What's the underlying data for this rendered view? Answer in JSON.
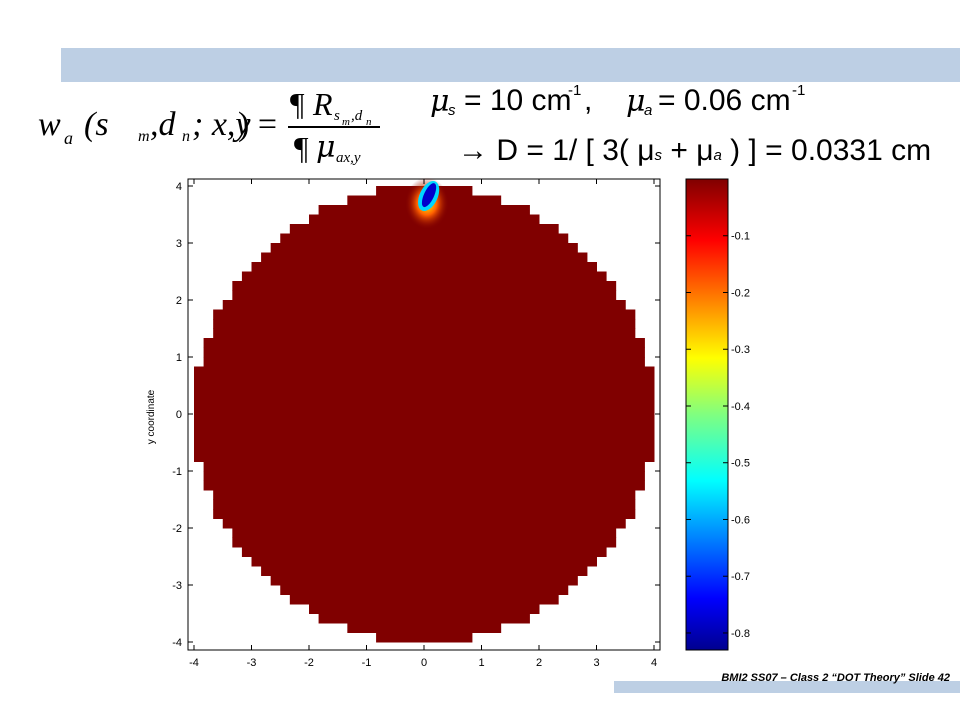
{
  "slide": {
    "footer": "BMI2 SS07 – Class 2 “DOT Theory” Slide 42",
    "colors": {
      "band": "#bdcfe4"
    }
  },
  "equations": {
    "w_lhs": "w",
    "w_sub": "a",
    "w_args": "(s",
    "w_args_sub": "m",
    "w_args2": ",d",
    "w_args2_sub": "n",
    "w_args3": "; x,y",
    "w_close": ") =",
    "num_partial": "¶",
    "num_R": "R",
    "num_sub": "s",
    "num_sub_m": "m",
    "num_sub_mid": ",d",
    "num_sub_n": "n",
    "den_partial": "¶",
    "den_mu": "μ",
    "den_sub": "ax,y",
    "params_mu_s": "μ",
    "params_s": "s",
    "params_eq1": "= 10 cm",
    "params_exp1": "-1",
    "params_comma": ",",
    "params_mu_a": "μ",
    "params_a": "a",
    "params_eq2": "= 0.06 cm",
    "params_exp2": "-1",
    "diffusion": "→ D = 1/ [ 3( μ",
    "diffusion_s": "s",
    "diffusion_plus": " + μ",
    "diffusion_a": "a",
    "diffusion_end": " ) ] = 0.0331 cm"
  },
  "chart_data": {
    "type": "heatmap",
    "title": "",
    "xlabel": "",
    "ylabel": "y coordinate",
    "xlim": [
      -4,
      4
    ],
    "ylim": [
      -4,
      4
    ],
    "x_ticks": [
      "-4",
      "-3",
      "-2",
      "-1",
      "0",
      "1",
      "2",
      "3",
      "4"
    ],
    "y_ticks": [
      "4",
      "3",
      "2",
      "1",
      "0",
      "-1",
      "-2",
      "-3",
      "-4"
    ],
    "domain": {
      "shape": "disk",
      "center": [
        0,
        0
      ],
      "radius": 4
    },
    "background_value": 0,
    "colormap": "jet",
    "colorbar": {
      "range": [
        -0.83,
        0.0
      ],
      "ticks": [
        -0.1,
        -0.2,
        -0.3,
        -0.4,
        -0.5,
        -0.6,
        -0.7,
        -0.8
      ],
      "tick_labels": [
        "-0.1",
        "-0.2",
        "-0.3",
        "-0.4",
        "-0.5",
        "-0.6",
        "-0.7",
        "-0.8"
      ]
    },
    "feature": {
      "description": "negative sensitivity spot at top boundary",
      "center": [
        0.05,
        3.8
      ],
      "min_value": -0.83
    },
    "grid": false
  }
}
